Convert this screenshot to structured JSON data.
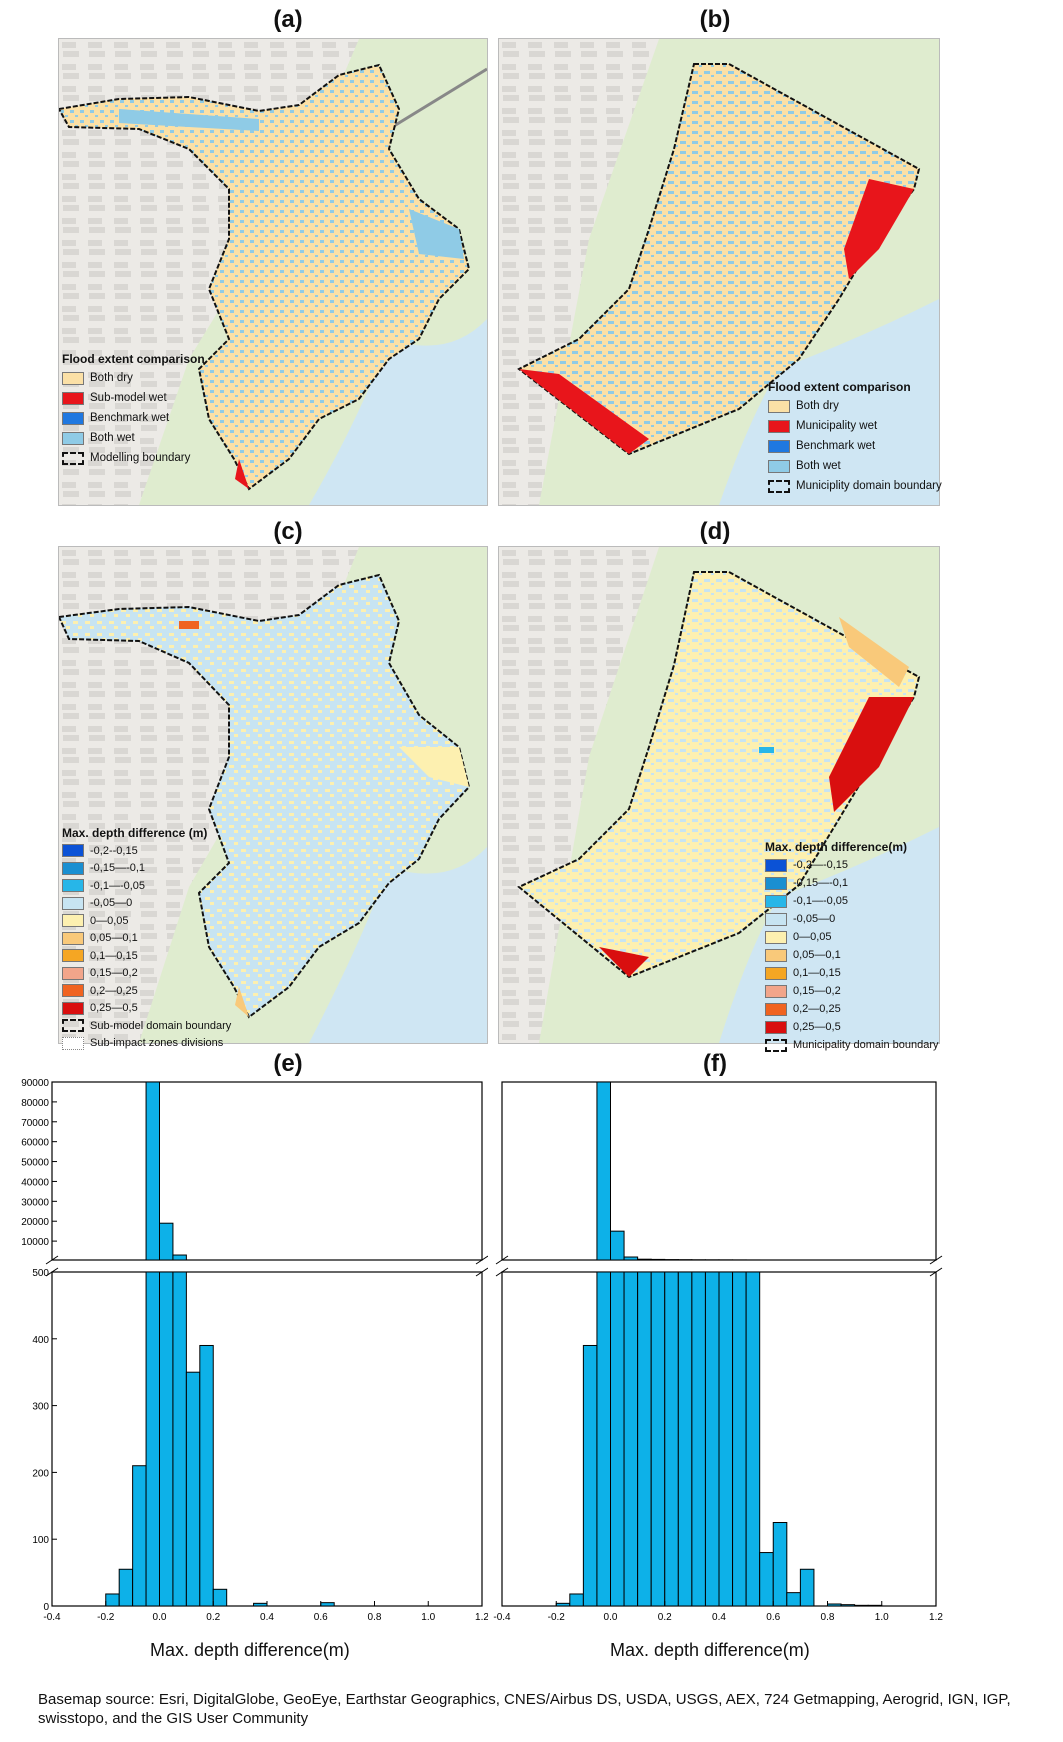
{
  "panels": {
    "a": {
      "title": "(a)"
    },
    "b": {
      "title": "(b)"
    },
    "c": {
      "title": "(c)"
    },
    "d": {
      "title": "(d)"
    },
    "e": {
      "title": "(e)"
    },
    "f": {
      "title": "(f)"
    }
  },
  "legend_a": {
    "title": "Flood extent comparison",
    "items": [
      {
        "label": "Both dry",
        "color": "#fbe0a6"
      },
      {
        "label": "Sub-model wet",
        "color": "#e8151b"
      },
      {
        "label": "Benchmark wet",
        "color": "#1f78e0"
      },
      {
        "label": "Both wet",
        "color": "#8fcbe6"
      },
      {
        "label": "Modelling boundary",
        "color": "dash"
      }
    ]
  },
  "legend_b": {
    "title": "Flood extent comparison",
    "items": [
      {
        "label": "Both dry",
        "color": "#fbe0a6"
      },
      {
        "label": "Municipality wet",
        "color": "#e8151b"
      },
      {
        "label": "Benchmark wet",
        "color": "#1f78e0"
      },
      {
        "label": "Both wet",
        "color": "#8fcbe6"
      },
      {
        "label": "Municiplity domain boundary",
        "color": "dash"
      }
    ]
  },
  "legend_c": {
    "title": "Max. depth difference (m)",
    "items": [
      {
        "label": "-0,2--0,15",
        "color": "#0b52d6"
      },
      {
        "label": "-0,15—-0,1",
        "color": "#1a8fd1"
      },
      {
        "label": "-0,1—-0,05",
        "color": "#27b6e8"
      },
      {
        "label": "-0,05—0",
        "color": "#c7e4f2"
      },
      {
        "label": "0—0,05",
        "color": "#fdf0b0"
      },
      {
        "label": "0,05—0,1",
        "color": "#f9c97a"
      },
      {
        "label": "0,1—0,15",
        "color": "#f5a623"
      },
      {
        "label": "0,15—0,2",
        "color": "#f2a58a"
      },
      {
        "label": "0,2—0,25",
        "color": "#f06320"
      },
      {
        "label": "0,25—0,5",
        "color": "#d90f0f"
      },
      {
        "label": "Sub-model domain boundary",
        "color": "dash"
      },
      {
        "label": "Sub-impact zones divisions",
        "color": "dot"
      }
    ]
  },
  "legend_d": {
    "title": "Max. depth difference(m)",
    "items": [
      {
        "label": "-0,2—-0,15",
        "color": "#0b52d6"
      },
      {
        "label": "-0,15—-0,1",
        "color": "#1a8fd1"
      },
      {
        "label": "-0,1—-0,05",
        "color": "#27b6e8"
      },
      {
        "label": "-0,05—0",
        "color": "#c7e4f2"
      },
      {
        "label": "0—0,05",
        "color": "#fdf0b0"
      },
      {
        "label": "0,05—0,1",
        "color": "#f9c97a"
      },
      {
        "label": "0,1—0,15",
        "color": "#f5a623"
      },
      {
        "label": "0,15—0,2",
        "color": "#f2a58a"
      },
      {
        "label": "0,2—0,25",
        "color": "#f06320"
      },
      {
        "label": "0,25—0,5",
        "color": "#d90f0f"
      },
      {
        "label": "Municipality domain boundary",
        "color": "dash"
      }
    ]
  },
  "chart_data": [
    {
      "type": "bar",
      "panel": "(e)",
      "xlabel": "Max. depth difference(m)",
      "xlim": [
        -0.4,
        1.2
      ],
      "xticks": [
        "-0.4",
        "-0.2",
        "0.0",
        "0.2",
        "0.4",
        "0.6",
        "0.8",
        "1.0",
        "1.2"
      ],
      "y_upper_range": [
        500,
        90000
      ],
      "y_upper_ticks": [
        "10000",
        "20000",
        "30000",
        "40000",
        "50000",
        "60000",
        "70000",
        "80000",
        "90000"
      ],
      "y_lower_range": [
        0,
        500
      ],
      "y_lower_ticks": [
        "0",
        "100",
        "200",
        "300",
        "400",
        "500"
      ],
      "bin_width": 0.05,
      "bin_starts": [
        -0.25,
        -0.2,
        -0.15,
        -0.1,
        -0.05,
        0.0,
        0.05,
        0.1,
        0.15,
        0.2,
        0.25,
        0.3,
        0.35,
        0.4,
        0.45,
        0.5,
        0.55,
        0.6,
        0.65,
        0.7
      ],
      "values": [
        0,
        18,
        55,
        210,
        92000,
        19000,
        3000,
        350,
        390,
        25,
        0,
        0,
        4,
        0,
        0,
        0,
        0,
        5,
        0,
        0
      ]
    },
    {
      "type": "bar",
      "panel": "(f)",
      "xlabel": "Max. depth difference(m)",
      "xlim": [
        -0.4,
        1.2
      ],
      "xticks": [
        "-0.4",
        "-0.2",
        "0.0",
        "0.2",
        "0.4",
        "0.6",
        "0.8",
        "1.0",
        "1.2"
      ],
      "y_upper_range": [
        500,
        90000
      ],
      "y_upper_ticks": [],
      "y_lower_range": [
        0,
        500
      ],
      "y_lower_ticks": [],
      "bin_width": 0.05,
      "bin_starts": [
        -0.25,
        -0.2,
        -0.15,
        -0.1,
        -0.05,
        0.0,
        0.05,
        0.1,
        0.15,
        0.2,
        0.25,
        0.3,
        0.35,
        0.4,
        0.45,
        0.5,
        0.55,
        0.6,
        0.65,
        0.7,
        0.75,
        0.8,
        0.85,
        0.9,
        0.95,
        1.0
      ],
      "values": [
        0,
        4,
        18,
        390,
        92000,
        15000,
        2000,
        900,
        800,
        700,
        650,
        600,
        580,
        560,
        540,
        520,
        80,
        125,
        20,
        55,
        0,
        3,
        2,
        1,
        1,
        0
      ]
    }
  ],
  "caption": "Basemap source: Esri, DigitalGlobe, GeoEye, Earthstar Geographics, CNES/Airbus DS, USDA, USGS, AEX, 724 Getmapping, Aerogrid, IGN, IGP, swisstopo, and the GIS User Community"
}
